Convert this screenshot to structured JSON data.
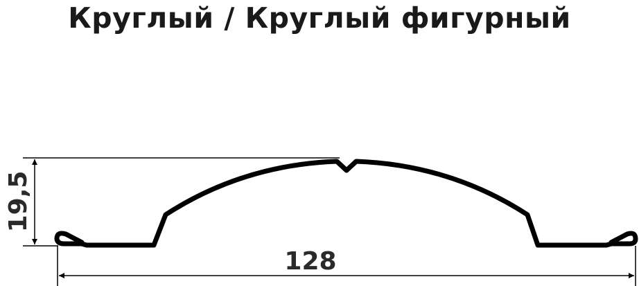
{
  "title": "Круглый / Круглый фигурный",
  "dimensions": {
    "height": "19,5",
    "width": "128"
  },
  "colors": {
    "profile": "#000000",
    "text": "#1a1a1a"
  }
}
